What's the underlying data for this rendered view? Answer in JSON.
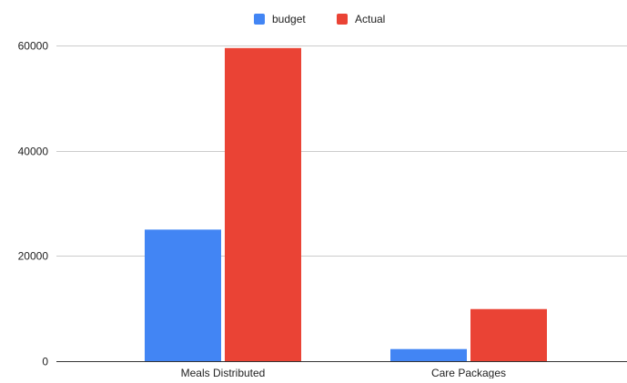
{
  "chart_data": {
    "type": "bar",
    "categories": [
      "Meals Distributed",
      "Care Packages"
    ],
    "series": [
      {
        "name": "budget",
        "color": "#4285f4",
        "values": [
          25000,
          2300
        ]
      },
      {
        "name": "Actual",
        "color": "#ea4335",
        "values": [
          59500,
          9900
        ]
      }
    ],
    "yticks": [
      "0",
      "20000",
      "40000",
      "60000"
    ],
    "ylim": [
      0,
      65000
    ],
    "grid": true,
    "legend_position": "top-center",
    "title": "",
    "xlabel": "",
    "ylabel": ""
  }
}
